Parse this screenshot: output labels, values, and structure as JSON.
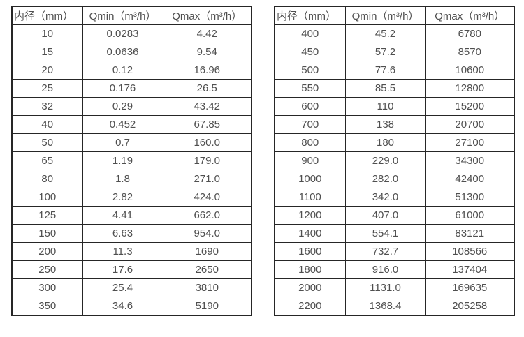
{
  "tables": [
    {
      "headers": [
        "内径（mm）",
        "Qmin（m³/h）",
        "Qmax（m³/h）"
      ],
      "rows": [
        [
          "10",
          "0.0283",
          "4.42"
        ],
        [
          "15",
          "0.0636",
          "9.54"
        ],
        [
          "20",
          "0.12",
          "16.96"
        ],
        [
          "25",
          "0.176",
          "26.5"
        ],
        [
          "32",
          "0.29",
          "43.42"
        ],
        [
          "40",
          "0.452",
          "67.85"
        ],
        [
          "50",
          "0.7",
          "160.0"
        ],
        [
          "65",
          "1.19",
          "179.0"
        ],
        [
          "80",
          "1.8",
          "271.0"
        ],
        [
          "100",
          "2.82",
          "424.0"
        ],
        [
          "125",
          "4.41",
          "662.0"
        ],
        [
          "150",
          "6.63",
          "954.0"
        ],
        [
          "200",
          "11.3",
          "1690"
        ],
        [
          "250",
          "17.6",
          "2650"
        ],
        [
          "300",
          "25.4",
          "3810"
        ],
        [
          "350",
          "34.6",
          "5190"
        ]
      ]
    },
    {
      "headers": [
        "内径（mm）",
        "Qmin（m³/h）",
        "Qmax（m³/h）"
      ],
      "rows": [
        [
          "400",
          "45.2",
          "6780"
        ],
        [
          "450",
          "57.2",
          "8570"
        ],
        [
          "500",
          "77.6",
          "10600"
        ],
        [
          "550",
          "85.5",
          "12800"
        ],
        [
          "600",
          "110",
          "15200"
        ],
        [
          "700",
          "138",
          "20700"
        ],
        [
          "800",
          "180",
          "27100"
        ],
        [
          "900",
          "229.0",
          "34300"
        ],
        [
          "1000",
          "282.0",
          "42400"
        ],
        [
          "1100",
          "342.0",
          "51300"
        ],
        [
          "1200",
          "407.0",
          "61000"
        ],
        [
          "1400",
          "554.1",
          "83121"
        ],
        [
          "1600",
          "732.7",
          "108566"
        ],
        [
          "1800",
          "916.0",
          "137404"
        ],
        [
          "2000",
          "1131.0",
          "169635"
        ],
        [
          "2200",
          "1368.4",
          "205258"
        ]
      ]
    }
  ],
  "colors": {
    "border": "#262626",
    "text": "#4f4f4f",
    "background": "#ffffff"
  }
}
